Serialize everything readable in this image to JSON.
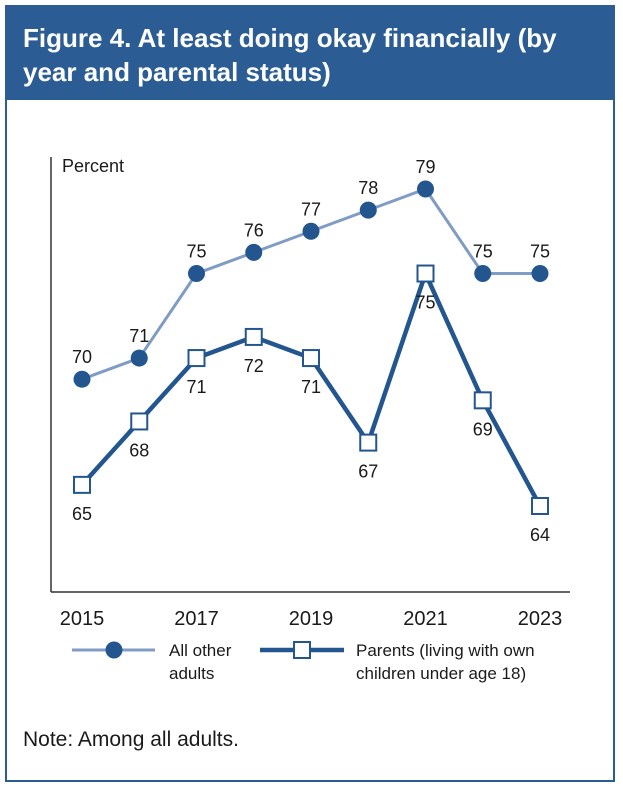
{
  "title": "Figure 4. At least doing okay financially (by year and parental status)",
  "note": "Note: Among all adults.",
  "colors": {
    "brand": "#2b5d94",
    "all_other": "#7f9cc4",
    "parents": "#23558f",
    "marker": "#23558f"
  },
  "chart_data": {
    "type": "line",
    "ylabel": "Percent",
    "x": [
      2015,
      2016,
      2017,
      2018,
      2019,
      2020,
      2021,
      2022,
      2023
    ],
    "x_tick_labels": [
      "2015",
      "2017",
      "2019",
      "2021",
      "2023"
    ],
    "x_tick_values": [
      2015,
      2017,
      2019,
      2021,
      2023
    ],
    "series": [
      {
        "name": "All other adults",
        "name_lines": [
          "All other",
          "adults"
        ],
        "marker": "circle",
        "values": [
          70,
          71,
          75,
          76,
          77,
          78,
          79,
          75,
          75
        ]
      },
      {
        "name": "Parents (living with own children under age 18)",
        "name_lines": [
          "Parents (living with own",
          "children under age 18)"
        ],
        "marker": "square",
        "values": [
          65,
          68,
          71,
          72,
          71,
          67,
          75,
          69,
          64
        ]
      }
    ],
    "ylim": [
      59,
      80.3
    ],
    "grid": false,
    "legend_position": "bottom"
  }
}
